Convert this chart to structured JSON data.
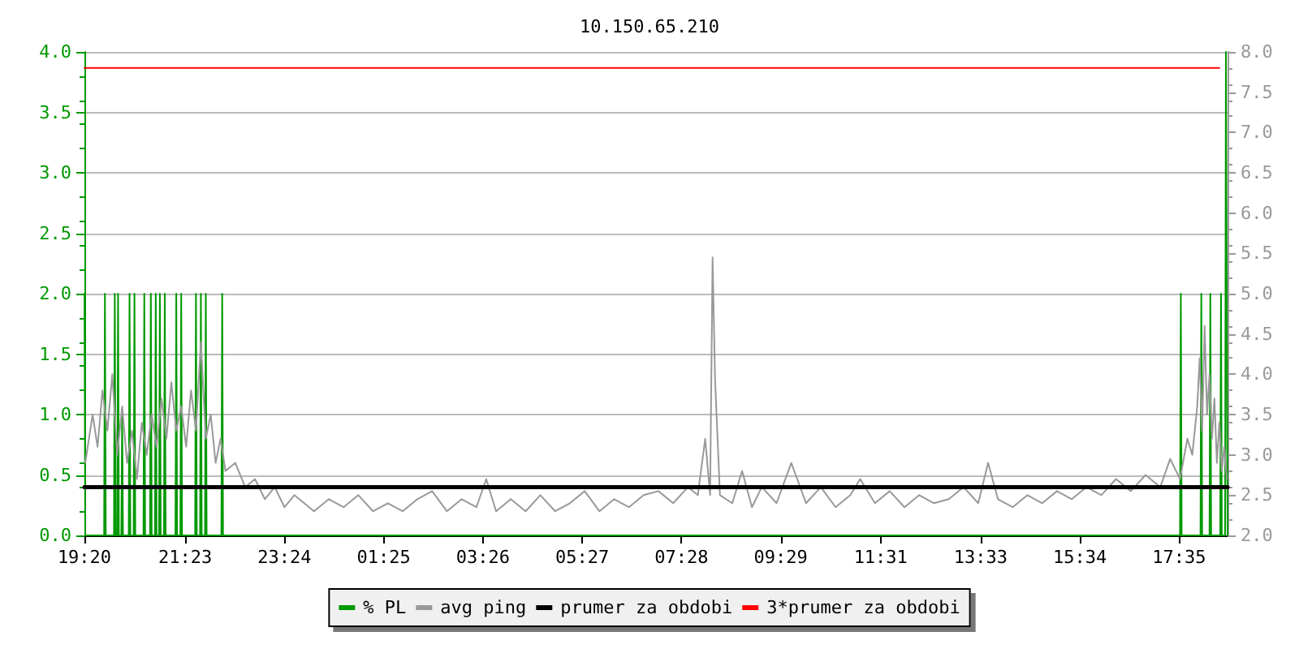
{
  "chart_data": {
    "type": "line",
    "title": "10.150.65.210",
    "xlim": [
      "--01-01T19:20",
      "--01-02T18:34"
    ],
    "xticks": [
      {
        "value": "--01-01T19:20",
        "label": "19:20"
      },
      {
        "value": "--01-01T21:23",
        "label": "21:23"
      },
      {
        "value": "--01-01T23:24",
        "label": "23:24"
      },
      {
        "value": "--01-02T01:25",
        "label": "01:25"
      },
      {
        "value": "--01-02T03:26",
        "label": "03:26"
      },
      {
        "value": "--01-02T05:27",
        "label": "05:27"
      },
      {
        "value": "--01-02T07:28",
        "label": "07:28"
      },
      {
        "value": "--01-02T09:29",
        "label": "09:29"
      },
      {
        "value": "--01-02T11:31",
        "label": "11:31"
      },
      {
        "value": "--01-02T13:33",
        "label": "13:33"
      },
      {
        "value": "--01-02T15:34",
        "label": "15:34"
      },
      {
        "value": "--01-02T17:35",
        "label": "17:35"
      }
    ],
    "ylim": [
      0,
      4
    ],
    "yticks": [
      {
        "value": 0,
        "label": "0.0"
      },
      0.5,
      {
        "value": 1,
        "label": "1.0"
      },
      1.5,
      {
        "value": 2,
        "label": "2.0"
      },
      2.5,
      {
        "value": 3,
        "label": "3.0"
      },
      3.5,
      {
        "value": 4,
        "label": "4.0"
      }
    ],
    "y2lim": [
      2,
      8
    ],
    "y2ticks": [
      {
        "value": 2,
        "label": "2.0"
      },
      2.5,
      {
        "value": 3,
        "label": "3.0"
      },
      3.5,
      {
        "value": 4,
        "label": "4.0"
      },
      4.5,
      {
        "value": 5,
        "label": "5.0"
      },
      5.5,
      {
        "value": 6,
        "label": "6.0"
      },
      6.5,
      {
        "value": 7,
        "label": "7.0"
      },
      7.5,
      {
        "value": 8,
        "label": "8.0"
      }
    ],
    "grid": "y",
    "legend": "bottom",
    "marker": "none",
    "line_style": "solid",
    "series": [
      {
        "name": "% PL",
        "color": "#009900",
        "x": [
          "--01-01T19:20",
          "--01-01T19:21",
          "--01-01T19:44",
          "--01-01T19:45",
          "--01-01T19:46",
          "--01-01T19:56",
          "--01-01T19:57",
          "--01-01T19:58",
          "--01-01T20:00",
          "--01-01T20:01",
          "--01-01T20:02",
          "--01-01T20:05",
          "--01-01T20:06",
          "--01-01T20:07",
          "--01-01T20:14",
          "--01-01T20:15",
          "--01-01T20:16",
          "--01-01T20:20",
          "--01-01T20:21",
          "--01-01T20:22",
          "--01-01T20:32",
          "--01-01T20:33",
          "--01-01T20:34",
          "--01-01T20:40",
          "--01-01T20:41",
          "--01-01T20:42",
          "--01-01T20:46",
          "--01-01T20:47",
          "--01-01T20:48",
          "--01-01T20:51",
          "--01-01T20:52",
          "--01-01T20:53",
          "--01-01T20:57",
          "--01-01T20:58",
          "--01-01T20:59",
          "--01-01T21:11",
          "--01-01T21:12",
          "--01-01T21:13",
          "--01-01T21:17",
          "--01-01T21:18",
          "--01-01T21:19",
          "--01-01T21:35",
          "--01-01T21:36",
          "--01-01T21:37",
          "--01-01T21:41",
          "--01-01T21:42",
          "--01-01T21:43",
          "--01-01T21:47",
          "--01-01T21:48",
          "--01-01T21:49",
          "--01-01T22:07",
          "--01-01T22:08",
          "--01-01T22:09",
          "--01-02T17:36",
          "--01-02T17:37",
          "--01-02T17:38",
          "--01-02T18:01",
          "--01-02T18:02",
          "--01-02T18:03",
          "--01-02T18:12",
          "--01-02T18:13",
          "--01-02T18:14",
          "--01-02T18:25",
          "--01-02T18:26",
          "--01-02T18:27",
          "--01-02T18:31",
          "--01-02T18:32",
          "--01-02T18:33",
          "--01-02T18:34"
        ],
        "values": [
          2,
          0,
          0,
          2,
          0,
          0,
          2,
          0,
          0,
          2,
          0,
          0,
          1,
          0,
          0,
          2,
          0,
          0,
          2,
          0,
          0,
          2,
          0,
          0,
          2,
          0,
          0,
          2,
          0,
          0,
          2,
          0,
          0,
          2,
          0,
          0,
          2,
          0,
          0,
          2,
          0,
          0,
          2,
          0,
          0,
          2,
          0,
          0,
          2,
          0,
          0,
          2,
          0,
          0,
          2,
          0,
          0,
          2,
          0,
          0,
          2,
          0,
          0,
          2,
          0,
          0,
          4,
          2,
          0
        ]
      },
      {
        "name": "avg ping",
        "color": "#999999",
        "axis": "y2",
        "x": [
          "--01-01T19:21",
          "--01-01T19:30",
          "--01-01T19:36",
          "--01-01T19:42",
          "--01-01T19:48",
          "--01-01T19:54",
          "--01-01T20:00",
          "--01-01T20:06",
          "--01-01T20:12",
          "--01-01T20:18",
          "--01-01T20:24",
          "--01-01T20:30",
          "--01-01T20:36",
          "--01-01T20:42",
          "--01-01T20:48",
          "--01-01T20:54",
          "--01-01T21:00",
          "--01-01T21:06",
          "--01-01T21:12",
          "--01-01T21:18",
          "--01-01T21:24",
          "--01-01T21:30",
          "--01-01T21:36",
          "--01-01T21:42",
          "--01-01T21:48",
          "--01-01T21:54",
          "--01-01T22:00",
          "--01-01T22:06",
          "--01-01T22:12",
          "--01-01T22:24",
          "--01-01T22:36",
          "--01-01T22:48",
          "--01-01T23:00",
          "--01-01T23:12",
          "--01-01T23:24",
          "--01-01T23:36",
          "--01-01T23:48",
          "--01-02T00:00",
          "--01-02T00:18",
          "--01-02T00:36",
          "--01-02T00:54",
          "--01-02T01:12",
          "--01-02T01:30",
          "--01-02T01:48",
          "--01-02T02:06",
          "--01-02T02:24",
          "--01-02T02:42",
          "--01-02T03:00",
          "--01-02T03:18",
          "--01-02T03:30",
          "--01-02T03:42",
          "--01-02T04:00",
          "--01-02T04:18",
          "--01-02T04:36",
          "--01-02T04:54",
          "--01-02T05:12",
          "--01-02T05:30",
          "--01-02T05:48",
          "--01-02T06:06",
          "--01-02T06:24",
          "--01-02T06:42",
          "--01-02T07:00",
          "--01-02T07:18",
          "--01-02T07:36",
          "--01-02T07:48",
          "--01-02T07:57",
          "--01-02T08:03",
          "--01-02T08:06",
          "--01-02T08:09",
          "--01-02T08:15",
          "--01-02T08:30",
          "--01-02T08:42",
          "--01-02T08:54",
          "--01-02T09:06",
          "--01-02T09:24",
          "--01-02T09:42",
          "--01-02T10:00",
          "--01-02T10:18",
          "--01-02T10:36",
          "--01-02T10:54",
          "--01-02T11:06",
          "--01-02T11:24",
          "--01-02T11:42",
          "--01-02T12:00",
          "--01-02T12:18",
          "--01-02T12:36",
          "--01-02T12:54",
          "--01-02T13:12",
          "--01-02T13:30",
          "--01-02T13:42",
          "--01-02T13:54",
          "--01-02T14:12",
          "--01-02T14:30",
          "--01-02T14:48",
          "--01-02T15:06",
          "--01-02T15:24",
          "--01-02T15:42",
          "--01-02T16:00",
          "--01-02T16:18",
          "--01-02T16:36",
          "--01-02T16:54",
          "--01-02T17:12",
          "--01-02T17:24",
          "--01-02T17:36",
          "--01-02T17:45",
          "--01-02T17:51",
          "--01-02T17:57",
          "--01-02T18:00",
          "--01-02T18:03",
          "--01-02T18:06",
          "--01-02T18:09",
          "--01-02T18:12",
          "--01-02T18:15",
          "--01-02T18:18",
          "--01-02T18:21",
          "--01-02T18:24",
          "--01-02T18:27",
          "--01-02T18:30",
          "--01-02T18:33"
        ],
        "values": [
          2.9,
          3.5,
          3.1,
          3.8,
          3.3,
          4.0,
          3.0,
          3.6,
          2.9,
          3.3,
          2.7,
          3.4,
          3.0,
          3.5,
          3.1,
          3.7,
          3.2,
          3.9,
          3.3,
          3.6,
          3.1,
          3.8,
          3.3,
          4.4,
          3.2,
          3.5,
          2.9,
          3.2,
          2.8,
          2.9,
          2.6,
          2.7,
          2.45,
          2.6,
          2.35,
          2.5,
          2.4,
          2.3,
          2.45,
          2.35,
          2.5,
          2.3,
          2.4,
          2.3,
          2.45,
          2.55,
          2.3,
          2.45,
          2.35,
          2.7,
          2.3,
          2.45,
          2.3,
          2.5,
          2.3,
          2.4,
          2.55,
          2.3,
          2.45,
          2.35,
          2.5,
          2.55,
          2.4,
          2.6,
          2.5,
          3.2,
          2.5,
          5.45,
          3.95,
          2.5,
          2.4,
          2.8,
          2.35,
          2.6,
          2.4,
          2.9,
          2.4,
          2.6,
          2.35,
          2.5,
          2.7,
          2.4,
          2.55,
          2.35,
          2.5,
          2.4,
          2.45,
          2.6,
          2.4,
          2.9,
          2.45,
          2.35,
          2.5,
          2.4,
          2.55,
          2.45,
          2.6,
          2.5,
          2.7,
          2.55,
          2.75,
          2.6,
          2.95,
          2.7,
          3.2,
          3.0,
          3.6,
          4.2,
          3.3,
          4.6,
          3.5,
          4.0,
          3.2,
          3.7,
          2.9,
          3.4,
          2.8,
          3.1,
          2.7
        ]
      },
      {
        "name": "prumer za obdobi",
        "color": "#000000",
        "axis": "y2",
        "x": [
          "--01-01T19:20",
          "--01-02T18:34"
        ],
        "values": [
          2.6,
          2.6
        ]
      },
      {
        "name": "3*prumer za obdobi",
        "color": "#ff0000",
        "axis": "y2",
        "x": [
          "--01-01T19:20",
          "--01-02T18:24"
        ],
        "values": [
          7.8,
          7.8
        ]
      }
    ]
  }
}
